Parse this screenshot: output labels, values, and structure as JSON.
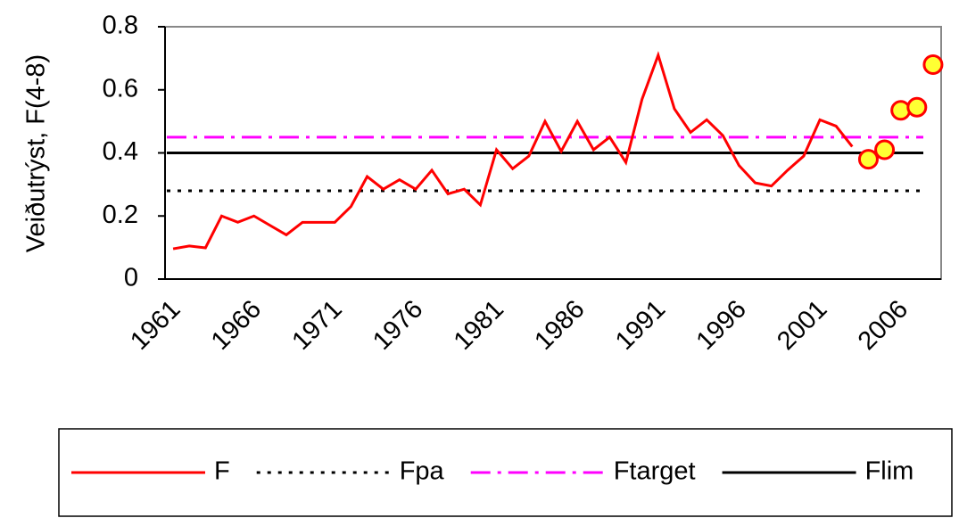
{
  "chart_data": {
    "type": "line",
    "y_label": "Veiðutrýst, F(4-8)",
    "categories": [
      1961,
      null,
      null,
      null,
      null,
      1966,
      null,
      null,
      null,
      null,
      1971,
      null,
      null,
      null,
      null,
      1976,
      null,
      null,
      null,
      null,
      1981,
      null,
      null,
      null,
      null,
      1986,
      null,
      null,
      null,
      null,
      1991,
      null,
      null,
      null,
      null,
      1996,
      null,
      null,
      null,
      null,
      2001,
      null,
      null,
      null,
      null,
      2006,
      null,
      null
    ],
    "series": [
      {
        "name": "F",
        "color": "#ff0000",
        "values": [
          0.096,
          0.105,
          0.099,
          0.2,
          0.18,
          0.2,
          0.17,
          0.14,
          0.18,
          0.18,
          0.18,
          0.23,
          0.325,
          0.285,
          0.315,
          0.285,
          0.345,
          0.27,
          0.285,
          0.235,
          0.41,
          0.35,
          0.39,
          0.5,
          0.405,
          0.5,
          0.41,
          0.45,
          0.37,
          0.57,
          0.71,
          0.54,
          0.465,
          0.505,
          0.455,
          0.36,
          0.305,
          0.295,
          0.345,
          0.39,
          0.505,
          0.485,
          0.42,
          null,
          null,
          null,
          null,
          null
        ]
      },
      {
        "color": "#ffff33",
        "marker": "circle",
        "edge_color": "#ff0000",
        "values": [
          null,
          null,
          null,
          null,
          null,
          null,
          null,
          null,
          null,
          null,
          null,
          null,
          null,
          null,
          null,
          null,
          null,
          null,
          null,
          null,
          null,
          null,
          null,
          null,
          null,
          null,
          null,
          null,
          null,
          null,
          null,
          null,
          null,
          null,
          null,
          null,
          null,
          null,
          null,
          null,
          null,
          null,
          null,
          0.38,
          0.41,
          0.535,
          0.545,
          0.68
        ]
      }
    ],
    "reference_lines": [
      {
        "name": "Fpa",
        "value": 0.28,
        "color": "#000000",
        "style": "dotted"
      },
      {
        "name": "Ftarget",
        "value": 0.45,
        "color": "#ff00ff",
        "style": "dashed"
      },
      {
        "name": "Flim",
        "value": 0.4,
        "color": "#000000",
        "style": "solid"
      }
    ],
    "ylim": [
      0,
      0.8
    ],
    "yticks": [
      0,
      0.2,
      0.4,
      0.6,
      0.8
    ]
  }
}
